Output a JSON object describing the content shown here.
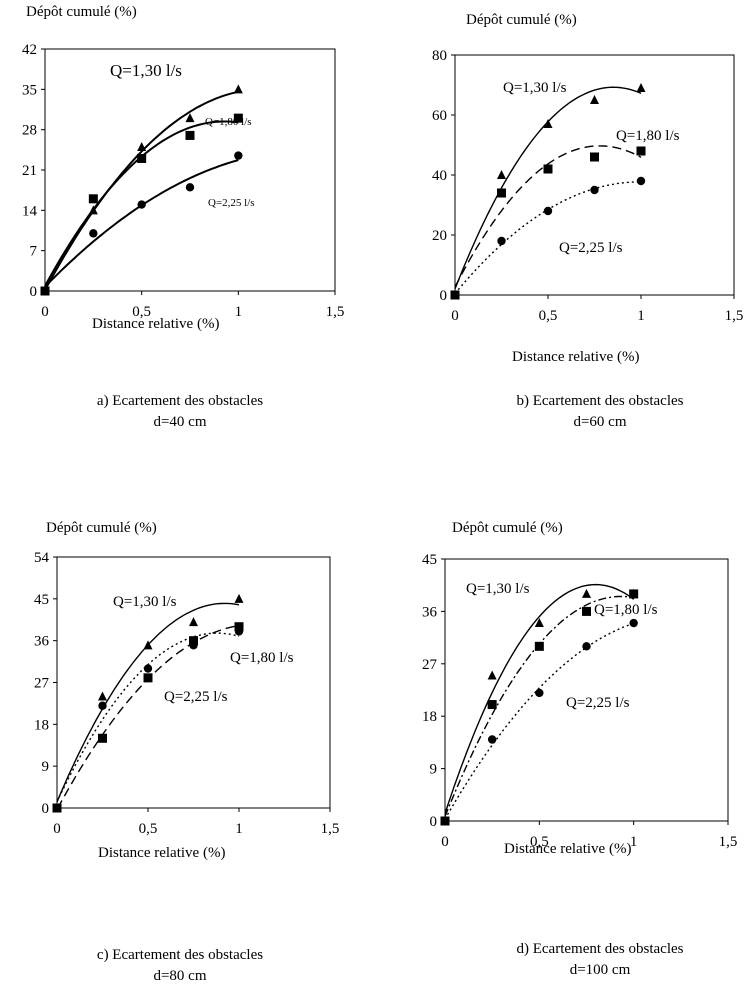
{
  "chart_data": [
    {
      "type": "scatter",
      "ylabel": "Dépôt cumulé (%)",
      "xlabel": "Distance relative (%)",
      "caption_line1": "a) Ecartement des obstacles",
      "caption_line2": "d=40 cm",
      "xlim": [
        0,
        1.5
      ],
      "xticks": [
        "0",
        "0,5",
        "1",
        "1,5"
      ],
      "ylim": [
        0,
        42
      ],
      "yticks": [
        "0",
        "7",
        "14",
        "21",
        "28",
        "35",
        "42"
      ],
      "grid": false,
      "series": [
        {
          "name": "Q=1,30 l/s",
          "marker": "triangle",
          "line": "solid",
          "x": [
            0,
            0.25,
            0.5,
            0.75,
            1
          ],
          "y": [
            0,
            14,
            25,
            30,
            35
          ]
        },
        {
          "name": "Q=1,80 l/s",
          "marker": "square",
          "line": "solid",
          "x": [
            0,
            0.25,
            0.5,
            0.75,
            1
          ],
          "y": [
            0,
            16,
            23,
            27,
            30
          ]
        },
        {
          "name": "Q=2,25 l/s",
          "marker": "circle",
          "line": "solid",
          "x": [
            0,
            0.25,
            0.5,
            0.75,
            1
          ],
          "y": [
            0,
            10,
            15,
            18,
            23.5
          ]
        }
      ]
    },
    {
      "type": "scatter",
      "ylabel": "Dépôt cumulé (%)",
      "xlabel": "Distance relative (%)",
      "caption_line1": "b) Ecartement des obstacles",
      "caption_line2": "d=60 cm",
      "xlim": [
        0,
        1.5
      ],
      "xticks": [
        "0",
        "0,5",
        "1",
        "1,5"
      ],
      "ylim": [
        0,
        80
      ],
      "yticks": [
        "0",
        "20",
        "40",
        "60",
        "80"
      ],
      "grid": false,
      "series": [
        {
          "name": "Q=1,30 l/s",
          "marker": "triangle",
          "line": "solid",
          "x": [
            0,
            0.25,
            0.5,
            0.75,
            1
          ],
          "y": [
            0,
            40,
            57,
            65,
            69
          ]
        },
        {
          "name": "Q=1,80 l/s",
          "marker": "square",
          "line": "dashed",
          "x": [
            0,
            0.25,
            0.5,
            0.75,
            1
          ],
          "y": [
            0,
            34,
            42,
            46,
            48
          ]
        },
        {
          "name": "Q=2,25 l/s",
          "marker": "circle",
          "line": "dotted",
          "x": [
            0,
            0.25,
            0.5,
            0.75,
            1
          ],
          "y": [
            0,
            18,
            28,
            35,
            38
          ]
        }
      ]
    },
    {
      "type": "scatter",
      "ylabel": "Dépôt cumulé (%)",
      "xlabel": "Distance relative (%)",
      "caption_line1": "c) Ecartement des obstacles",
      "caption_line2": "d=80 cm",
      "xlim": [
        0,
        1.5
      ],
      "xticks": [
        "0",
        "0,5",
        "1",
        "1,5"
      ],
      "ylim": [
        0,
        54
      ],
      "yticks": [
        "0",
        "9",
        "18",
        "27",
        "36",
        "45",
        "54"
      ],
      "grid": false,
      "series": [
        {
          "name": "Q=1,30 l/s",
          "marker": "triangle",
          "line": "solid",
          "x": [
            0,
            0.25,
            0.5,
            0.75,
            1
          ],
          "y": [
            0,
            24,
            35,
            40,
            45
          ]
        },
        {
          "name": "Q=1,80 l/s",
          "marker": "square",
          "line": "dashed",
          "x": [
            0,
            0.25,
            0.5,
            0.75,
            1
          ],
          "y": [
            0,
            15,
            28,
            36,
            39
          ]
        },
        {
          "name": "Q=2,25 l/s",
          "marker": "circle",
          "line": "dotted",
          "x": [
            0,
            0.25,
            0.5,
            0.75,
            1
          ],
          "y": [
            0,
            22,
            30,
            35,
            38
          ]
        }
      ]
    },
    {
      "type": "scatter",
      "ylabel": "Dépôt cumulé (%)",
      "xlabel": "Distance relative (%)",
      "caption_line1": "d) Ecartement des obstacles",
      "caption_line2": "d=100 cm",
      "xlim": [
        0,
        1.5
      ],
      "xticks": [
        "0",
        "0,5",
        "1",
        "1,5"
      ],
      "ylim": [
        0,
        45
      ],
      "yticks": [
        "0",
        "9",
        "18",
        "27",
        "36",
        "45"
      ],
      "grid": false,
      "series": [
        {
          "name": "Q=1,30 l/s",
          "marker": "triangle",
          "line": "solid",
          "x": [
            0,
            0.25,
            0.5,
            0.75,
            1
          ],
          "y": [
            0,
            25,
            34,
            39,
            39
          ]
        },
        {
          "name": "Q=1,80 l/s",
          "marker": "square",
          "line": "dashdot",
          "x": [
            0,
            0.25,
            0.5,
            0.75,
            1
          ],
          "y": [
            0,
            20,
            30,
            36,
            39
          ]
        },
        {
          "name": "Q=2,25 l/s",
          "marker": "circle",
          "line": "dotted",
          "x": [
            0,
            0.25,
            0.5,
            0.75,
            1
          ],
          "y": [
            0,
            14,
            22,
            30,
            34
          ]
        }
      ]
    }
  ]
}
